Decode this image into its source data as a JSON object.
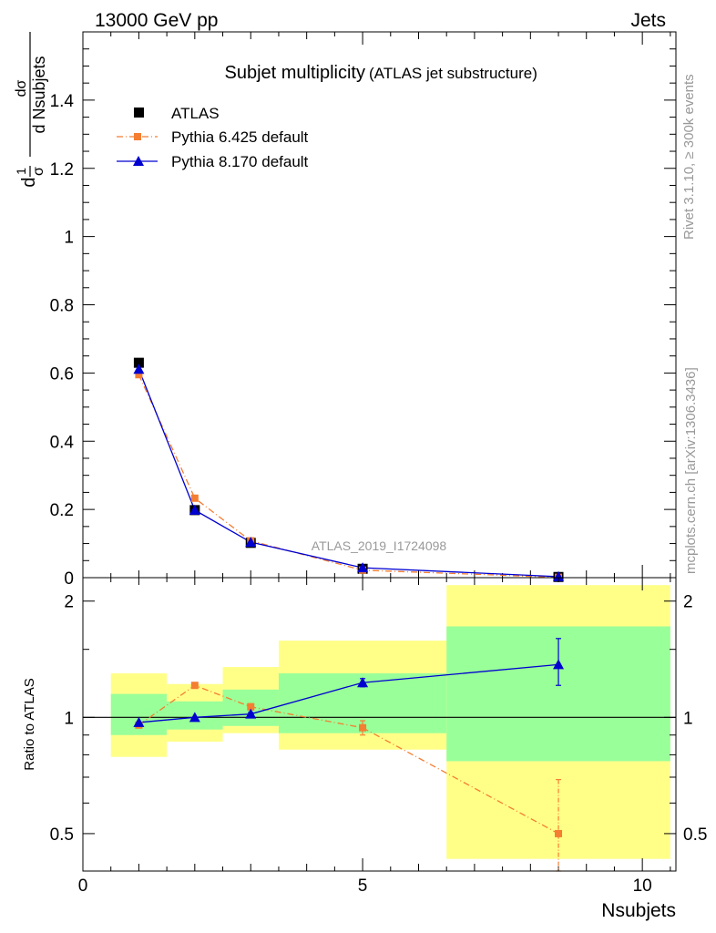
{
  "header": {
    "energy": "13000 GeV pp",
    "process": "Jets",
    "side_top": "Rivet 3.1.10, ≥ 300k events",
    "side_bottom": "mcplots.cern.ch [arXiv:1306.3436]",
    "analysis_id": "ATLAS_2019_I1724098"
  },
  "chart_data": [
    {
      "type": "line",
      "title": "Subjet multiplicity",
      "subtitle": "(ATLAS jet substructure)",
      "ylabel_frac_left_num": "1",
      "ylabel_frac_left_den": "σ",
      "ylabel_frac_right_num": "dσ",
      "ylabel_frac_right_den": "d Nsubjets",
      "ylabel_d": "d",
      "xlim": [
        0,
        10.6
      ],
      "ylim": [
        0,
        1.6
      ],
      "yticks": [
        0,
        0.2,
        0.4,
        0.6,
        0.8,
        1,
        1.2,
        1.4
      ],
      "ytick_labels": [
        "0",
        "0.2",
        "0.4",
        "0.6",
        "0.8",
        "1",
        "1.2",
        "1.4"
      ],
      "series": [
        {
          "name": "ATLAS",
          "color": "#000000",
          "marker": "square",
          "x": [
            1,
            2,
            3,
            5,
            8.5
          ],
          "y": [
            0.63,
            0.198,
            0.102,
            0.026,
            0.002
          ]
        },
        {
          "name": "Pythia 6.425 default",
          "color": "#f47e32",
          "marker": "square-small",
          "dash": "dashdot",
          "x": [
            1,
            2,
            3,
            5,
            8.5
          ],
          "y": [
            0.595,
            0.233,
            0.108,
            0.022,
            0.001
          ]
        },
        {
          "name": "Pythia 8.170 default",
          "color": "#0000d0",
          "marker": "triangle",
          "x": [
            1,
            2,
            3,
            5,
            8.5
          ],
          "y": [
            0.611,
            0.198,
            0.104,
            0.029,
            0.003
          ]
        }
      ]
    },
    {
      "type": "line",
      "ylabel": "Ratio to ATLAS",
      "xlabel": "Nsubjets",
      "xlim": [
        0,
        10.6
      ],
      "ylim": [
        0.4,
        2.3
      ],
      "xticks": [
        0,
        5,
        10
      ],
      "xtick_labels": [
        "0",
        "5",
        "10"
      ],
      "yticks": [
        0.5,
        1,
        2
      ],
      "ytick_labels": [
        "0.5",
        "1",
        "2"
      ],
      "bands": [
        {
          "x0": 0.5,
          "x1": 1.5,
          "y_inner": [
            0.9,
            1.15
          ],
          "y_outer": [
            0.79,
            1.3
          ]
        },
        {
          "x0": 1.5,
          "x1": 2.5,
          "y_inner": [
            0.93,
            1.1
          ],
          "y_outer": [
            0.865,
            1.22
          ]
        },
        {
          "x0": 2.5,
          "x1": 3.5,
          "y_inner": [
            0.95,
            1.18
          ],
          "y_outer": [
            0.91,
            1.35
          ]
        },
        {
          "x0": 3.5,
          "x1": 6.5,
          "y_inner": [
            0.91,
            1.3
          ],
          "y_outer": [
            0.825,
            1.58
          ]
        },
        {
          "x0": 6.5,
          "x1": 10.5,
          "y_inner": [
            0.77,
            1.72
          ],
          "y_outer": [
            0.43,
            2.2
          ]
        }
      ],
      "series": [
        {
          "name": "Pythia 6.425 default",
          "color": "#f47e32",
          "marker": "square-small",
          "dash": "dashdot",
          "x": [
            1,
            2,
            3,
            5,
            8.5
          ],
          "y": [
            0.955,
            1.21,
            1.065,
            0.94,
            0.5
          ],
          "err": [
            [
              0.01,
              0.01
            ],
            [
              0.01,
              0.01
            ],
            [
              0.02,
              0.02
            ],
            [
              0.04,
              0.04
            ],
            [
              0.12,
              0.19
            ]
          ]
        },
        {
          "name": "Pythia 8.170 default",
          "color": "#0000d0",
          "marker": "triangle",
          "x": [
            1,
            2,
            3,
            5,
            8.5
          ],
          "y": [
            0.97,
            1.0,
            1.02,
            1.23,
            1.37
          ],
          "err": [
            [
              0.005,
              0.005
            ],
            [
              0.005,
              0.005
            ],
            [
              0.01,
              0.01
            ],
            [
              0.03,
              0.03
            ],
            [
              0.16,
              0.23
            ]
          ]
        }
      ]
    }
  ]
}
